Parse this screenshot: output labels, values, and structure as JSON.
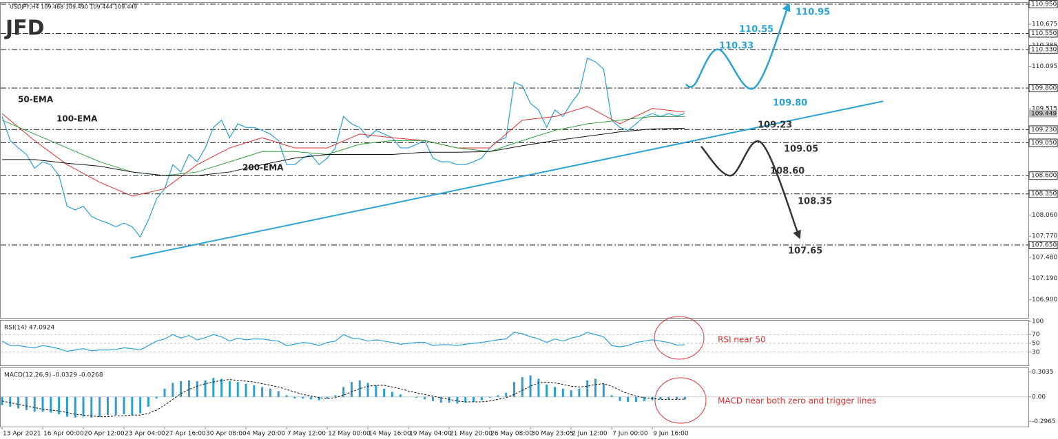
{
  "logo": "JFD",
  "chart_data": [
    {
      "type": "line",
      "title": "USDJPY,H4  109.468 109.490 109.444 109.449",
      "xlim": [
        0,
        126
      ],
      "ylim": [
        106.65,
        110.96
      ],
      "yticks": [
        {
          "value": 110.675,
          "label": "110.675"
        },
        {
          "value": 110.385,
          "label": "110.385"
        },
        {
          "value": 110.095,
          "label": "110.095"
        },
        {
          "value": 109.515,
          "label": "109.515"
        },
        {
          "value": 108.06,
          "label": "108.060"
        },
        {
          "value": 107.77,
          "label": "107.770"
        },
        {
          "value": 107.48,
          "label": "107.480"
        },
        {
          "value": 107.19,
          "label": "107.190"
        },
        {
          "value": 106.9,
          "label": "106.900"
        }
      ],
      "levels": [
        {
          "value": 110.95,
          "label": "110.950"
        },
        {
          "value": 110.55,
          "label": "110.550"
        },
        {
          "value": 110.33,
          "label": "110.330"
        },
        {
          "value": 109.8,
          "label": "109.800"
        },
        {
          "value": 109.23,
          "label": "109.230"
        },
        {
          "value": 109.05,
          "label": "109.050"
        },
        {
          "value": 108.6,
          "label": "108.600"
        },
        {
          "value": 108.35,
          "label": "108.350"
        },
        {
          "value": 107.65,
          "label": "107.650"
        }
      ],
      "current": {
        "value": 109.449,
        "label": "109.449"
      },
      "series": [
        {
          "color": "#2b9fd4",
          "values": [
            109.41,
            109.08,
            108.98,
            108.89,
            108.7,
            108.79,
            108.75,
            108.6,
            108.18,
            108.13,
            108.18,
            108.04,
            107.99,
            107.95,
            107.9,
            107.95,
            107.9,
            107.76,
            107.99,
            108.28,
            108.42,
            108.75,
            108.65,
            108.89,
            108.79,
            108.98,
            109.26,
            109.36,
            109.12,
            109.31,
            109.26,
            109.26,
            109.22,
            109.17,
            109.08,
            108.75,
            108.75,
            108.84,
            108.89,
            108.75,
            108.84,
            108.98,
            109.41,
            109.31,
            109.26,
            109.12,
            109.22,
            109.17,
            109.12,
            108.98,
            108.98,
            109.03,
            109.08,
            108.84,
            108.79,
            108.79,
            108.75,
            108.75,
            108.79,
            108.84,
            108.98,
            109.08,
            109.12,
            109.88,
            109.83,
            109.59,
            109.5,
            109.26,
            109.5,
            109.41,
            109.59,
            109.74,
            110.21,
            110.16,
            110.06,
            109.36,
            109.26,
            109.22,
            109.31,
            109.41,
            109.45,
            109.41,
            109.45,
            109.42,
            109.45
          ]
        },
        {
          "name": "50-EMA",
          "color": "#e03030",
          "x": [
            0,
            4,
            8,
            12,
            16,
            20,
            24,
            28,
            32,
            36,
            40,
            44,
            48,
            52,
            56,
            60,
            64,
            68,
            72,
            76,
            80,
            84
          ],
          "values": [
            109.45,
            109.08,
            108.75,
            108.51,
            108.32,
            108.42,
            108.75,
            108.98,
            109.12,
            108.98,
            108.98,
            109.17,
            109.12,
            109.08,
            108.98,
            108.98,
            109.36,
            109.41,
            109.55,
            109.31,
            109.52,
            109.47
          ]
        },
        {
          "name": "100-EMA",
          "color": "#2e9e3e",
          "x": [
            0,
            4,
            8,
            12,
            16,
            20,
            24,
            28,
            32,
            36,
            40,
            44,
            48,
            52,
            56,
            60,
            64,
            68,
            72,
            76,
            80,
            84
          ],
          "values": [
            109.36,
            109.17,
            108.98,
            108.79,
            108.65,
            108.6,
            108.65,
            108.79,
            108.93,
            108.93,
            108.89,
            109.03,
            109.08,
            109.08,
            108.98,
            108.93,
            109.08,
            109.22,
            109.31,
            109.36,
            109.41,
            109.41
          ]
        },
        {
          "name": "200-EMA",
          "color": "#111111",
          "x": [
            0,
            4,
            8,
            12,
            16,
            20,
            24,
            28,
            32,
            36,
            40,
            44,
            48,
            52,
            56,
            60,
            64,
            68,
            72,
            76,
            80,
            84
          ],
          "values": [
            108.82,
            108.82,
            108.77,
            108.73,
            108.65,
            108.6,
            108.6,
            108.65,
            108.75,
            108.84,
            108.89,
            108.89,
            108.89,
            108.92,
            108.92,
            108.93,
            109.01,
            109.08,
            109.14,
            109.2,
            109.24,
            109.25
          ]
        }
      ],
      "trendline": {
        "color": "#29a3d6",
        "x": [
          15.8,
          108.4
        ],
        "values": [
          107.47,
          109.62
        ]
      },
      "scenarios": [
        {
          "color": "#29a3d6",
          "x": [
            84.1,
            85.2,
            88.1,
            92.5,
            96.8
          ],
          "values": [
            109.85,
            109.85,
            110.33,
            109.8,
            110.95
          ]
        },
        {
          "color": "#333333",
          "x": [
            86.0,
            89.6,
            93.4,
            98.1
          ],
          "values": [
            109.0,
            108.6,
            109.05,
            107.75
          ]
        }
      ],
      "annotations": [
        {
          "text": "110.95",
          "color": "#29a3d6"
        },
        {
          "text": "110.55",
          "color": "#29a3d6"
        },
        {
          "text": "110.33",
          "color": "#29a3d6"
        },
        {
          "text": "109.80",
          "color": "#29a3d6"
        },
        {
          "text": "109.23",
          "color": "#333333"
        },
        {
          "text": "109.05",
          "color": "#333333"
        },
        {
          "text": "108.60",
          "color": "#333333"
        },
        {
          "text": "108.35",
          "color": "#333333"
        },
        {
          "text": "107.65",
          "color": "#333333"
        }
      ]
    },
    {
      "type": "line",
      "title": "RSI(14) 47.0924",
      "xlim": [
        0,
        126
      ],
      "ylim": [
        0,
        100
      ],
      "yticks": [
        100,
        70,
        50,
        30
      ],
      "series": [
        {
          "color": "#2b9fd4",
          "values": [
            55,
            45,
            45,
            42,
            40,
            45,
            42,
            38,
            32,
            35,
            38,
            33,
            35,
            35,
            36,
            40,
            38,
            35,
            45,
            55,
            60,
            70,
            62,
            68,
            58,
            63,
            70,
            65,
            55,
            62,
            58,
            60,
            60,
            57,
            55,
            45,
            48,
            52,
            50,
            45,
            52,
            55,
            70,
            62,
            60,
            55,
            58,
            55,
            52,
            48,
            50,
            52,
            52,
            45,
            47,
            47,
            45,
            48,
            50,
            52,
            55,
            58,
            60,
            75,
            72,
            65,
            60,
            52,
            60,
            55,
            62,
            66,
            75,
            70,
            65,
            45,
            42,
            45,
            52,
            55,
            58,
            55,
            52,
            46,
            47
          ]
        }
      ],
      "annotation": "RSI near 50"
    },
    {
      "type": "macd",
      "title": "MACD(12,26,9) -0.0329 -0.0268",
      "xlim": [
        0,
        126
      ],
      "ylim": [
        -0.36,
        0.34
      ],
      "yticks": [
        0.3035,
        {
          "value": 0,
          "label": "0.00"
        },
        -0.2965
      ],
      "series": [
        {
          "color": "#2b9fd4",
          "values": [
            -0.1,
            -0.12,
            -0.14,
            -0.16,
            -0.18,
            -0.18,
            -0.19,
            -0.21,
            -0.24,
            -0.25,
            -0.24,
            -0.25,
            -0.24,
            -0.22,
            -0.22,
            -0.21,
            -0.22,
            -0.2,
            -0.12,
            -0.02,
            0.1,
            0.17,
            0.19,
            0.2,
            0.19,
            0.2,
            0.23,
            0.22,
            0.19,
            0.18,
            0.16,
            0.14,
            0.12,
            0.1,
            0.07,
            0.02,
            -0.02,
            -0.02,
            -0.03,
            -0.04,
            -0.02,
            0.02,
            0.12,
            0.18,
            0.2,
            0.17,
            0.14,
            0.1,
            0.06,
            0.03,
            0.0,
            -0.01,
            -0.03,
            -0.05,
            -0.07,
            -0.07,
            -0.08,
            -0.07,
            -0.06,
            -0.04,
            -0.01,
            0.02,
            0.05,
            0.18,
            0.24,
            0.26,
            0.22,
            0.15,
            0.12,
            0.1,
            0.08,
            0.1,
            0.2,
            0.22,
            0.16,
            0.02,
            -0.05,
            -0.06,
            -0.06,
            -0.05,
            -0.04,
            -0.03,
            -0.03,
            -0.03,
            -0.0329
          ]
        },
        {
          "color": "#111111",
          "values": [
            -0.05,
            -0.07,
            -0.09,
            -0.11,
            -0.13,
            -0.15,
            -0.16,
            -0.17,
            -0.19,
            -0.21,
            -0.22,
            -0.23,
            -0.24,
            -0.24,
            -0.23,
            -0.23,
            -0.22,
            -0.22,
            -0.2,
            -0.16,
            -0.1,
            -0.03,
            0.04,
            0.09,
            0.13,
            0.16,
            0.18,
            0.2,
            0.21,
            0.2,
            0.19,
            0.18,
            0.16,
            0.14,
            0.12,
            0.09,
            0.06,
            0.03,
            0.01,
            -0.01,
            -0.02,
            -0.01,
            0.02,
            0.06,
            0.1,
            0.13,
            0.14,
            0.14,
            0.12,
            0.1,
            0.07,
            0.05,
            0.03,
            0.01,
            -0.01,
            -0.03,
            -0.05,
            -0.06,
            -0.06,
            -0.06,
            -0.05,
            -0.03,
            -0.01,
            0.03,
            0.08,
            0.13,
            0.17,
            0.18,
            0.17,
            0.15,
            0.13,
            0.12,
            0.13,
            0.15,
            0.16,
            0.13,
            0.08,
            0.04,
            0.01,
            -0.01,
            -0.02,
            -0.03,
            -0.03,
            -0.03,
            -0.0268
          ]
        }
      ],
      "xticks": [
        {
          "value": 0,
          "label": "13 Apr 2021"
        },
        {
          "value": 5,
          "label": "16 Apr 00:00"
        },
        {
          "value": 10,
          "label": "20 Apr 12:00"
        },
        {
          "value": 15,
          "label": "23 Apr 04:00"
        },
        {
          "value": 20,
          "label": "27 Apr 16:00"
        },
        {
          "value": 25,
          "label": "30 Apr 08:00"
        },
        {
          "value": 30,
          "label": "4 May 20:00"
        },
        {
          "value": 35,
          "label": "7 May 12:00"
        },
        {
          "value": 40,
          "label": "12 May 00:00"
        },
        {
          "value": 45,
          "label": "14 May 16:00"
        },
        {
          "value": 50,
          "label": "19 May 04:00"
        },
        {
          "value": 55,
          "label": "21 May 20:00"
        },
        {
          "value": 60,
          "label": "26 May 08:00"
        },
        {
          "value": 65,
          "label": "30 May 23:05"
        },
        {
          "value": 70,
          "label": "2 Jun 12:00"
        },
        {
          "value": 75,
          "label": "7 Jun 00:00"
        },
        {
          "value": 80,
          "label": "9 Jun 16:00"
        }
      ],
      "annotation": "MACD near both zero and trigger lines"
    }
  ]
}
